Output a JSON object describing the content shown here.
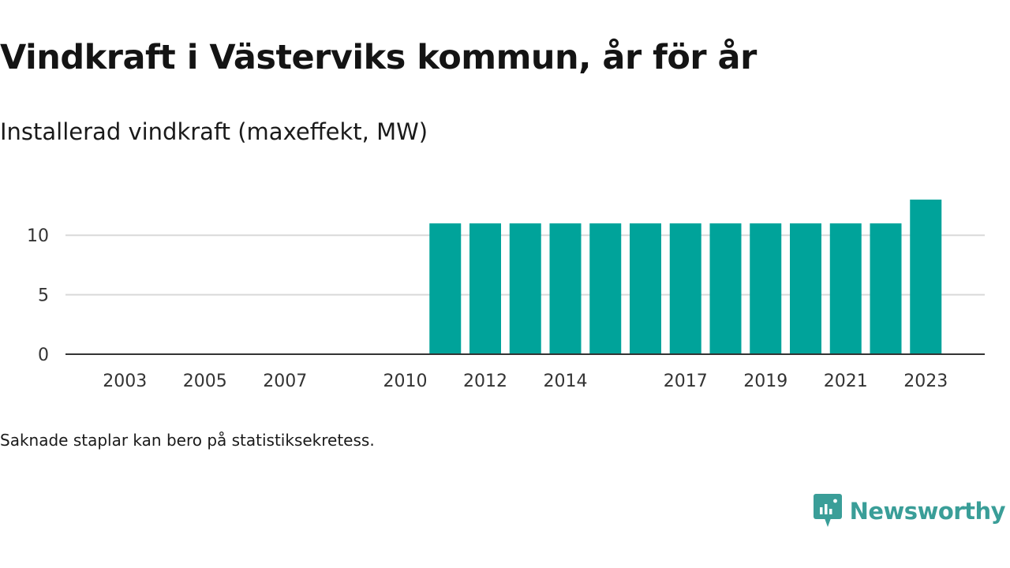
{
  "title": "Vindkraft i Västerviks kommun, år för år",
  "subtitle": "Installerad vindkraft (maxeffekt, MW)",
  "note": "Saknade staplar kan bero på statistiksekretess.",
  "brand": "Newsworthy",
  "colors": {
    "bar": "#00a39a",
    "grid": "#d9d9d9",
    "axis": "#333333",
    "brand": "#3a9e98"
  },
  "chart_data": {
    "type": "bar",
    "categories": [
      "2002",
      "2003",
      "2004",
      "2005",
      "2006",
      "2007",
      "2008",
      "2009",
      "2010",
      "2011",
      "2012",
      "2013",
      "2014",
      "2015",
      "2016",
      "2017",
      "2018",
      "2019",
      "2020",
      "2021",
      "2022",
      "2023"
    ],
    "values": [
      null,
      null,
      null,
      null,
      null,
      null,
      null,
      null,
      null,
      11,
      11,
      11,
      11,
      11,
      11,
      11,
      11,
      11,
      11,
      11,
      11,
      13
    ],
    "x_tick_labels": [
      "2003",
      "2005",
      "2007",
      "2010",
      "2012",
      "2014",
      "2017",
      "2019",
      "2021",
      "2023"
    ],
    "y_ticks": [
      0,
      5,
      10
    ],
    "ylim": [
      0,
      13.2
    ],
    "grid": true,
    "legend": "none"
  }
}
